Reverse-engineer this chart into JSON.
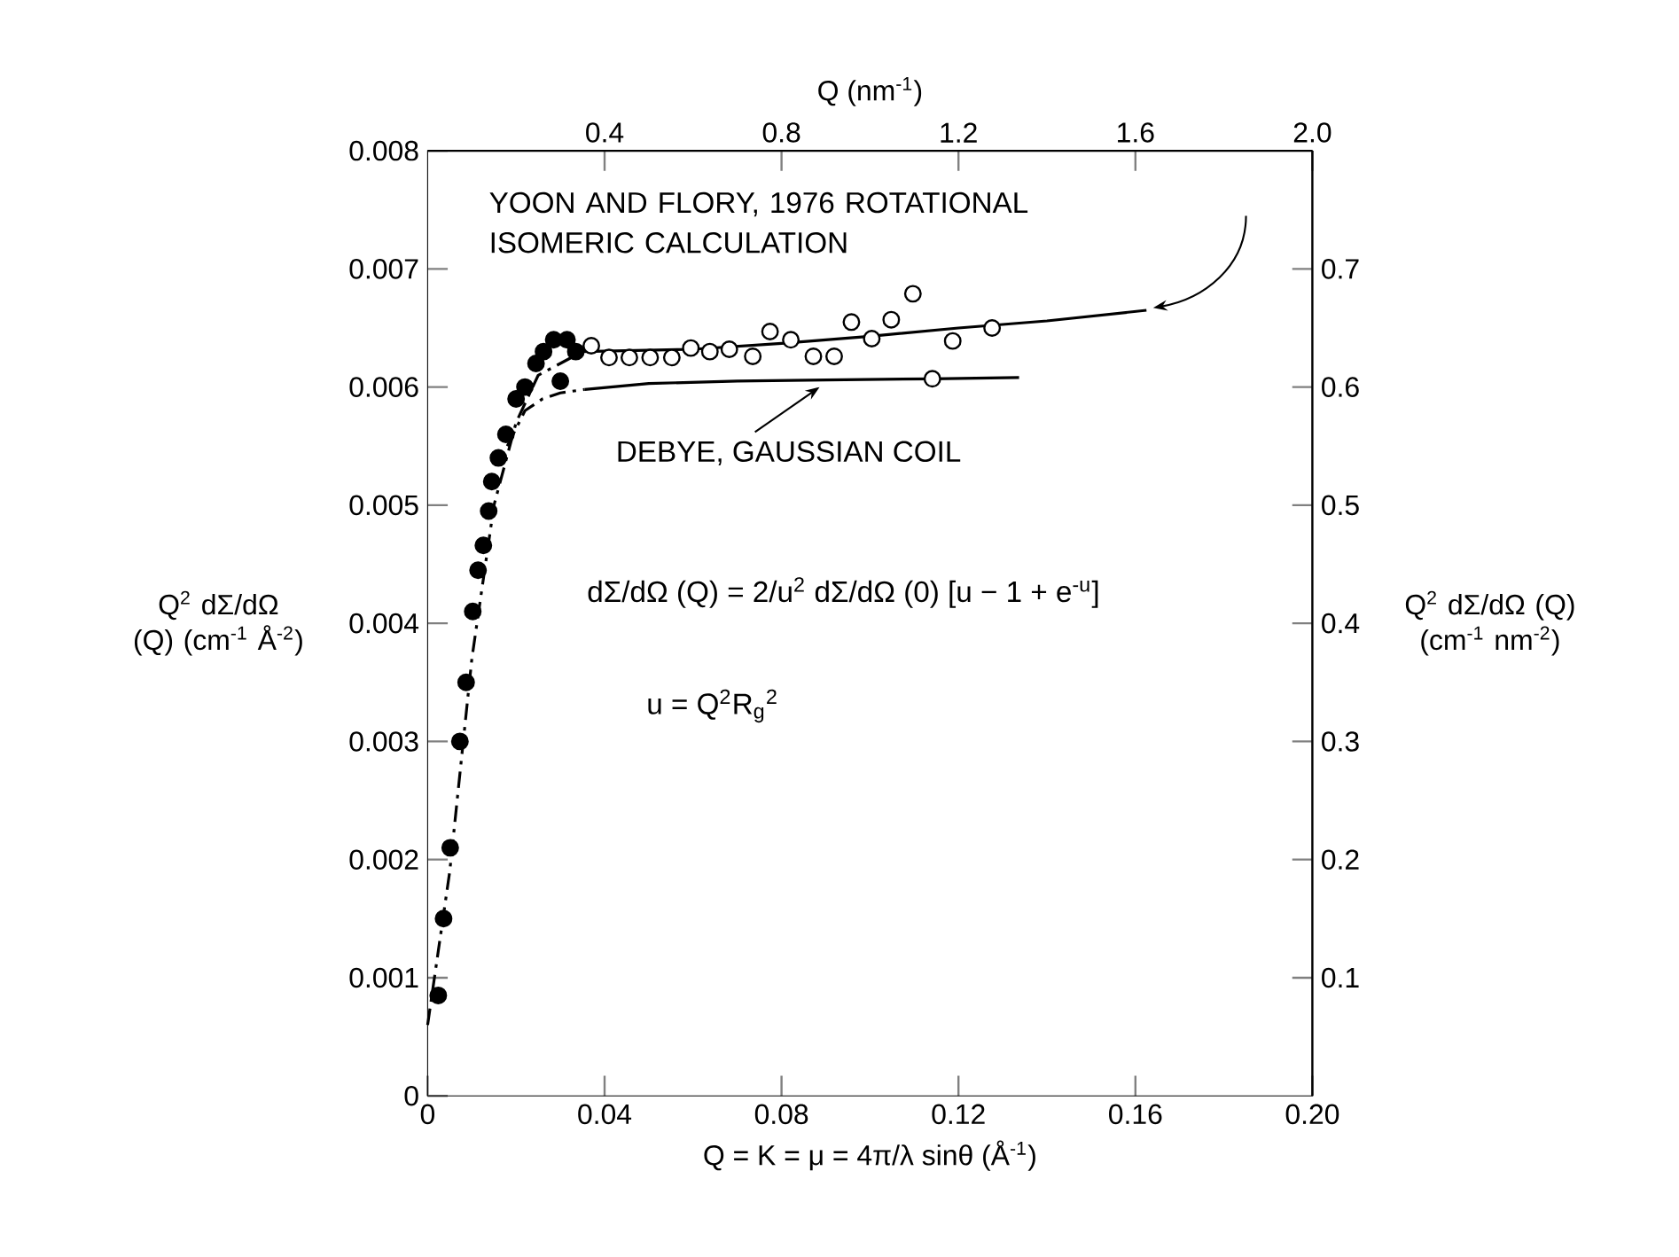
{
  "chart_data": {
    "type": "scatter",
    "xlabel": "Q = K = μ = 4π/λ sinθ (Å$^{-1}$)",
    "ylabel": "Q$^{2}$ dΣ/dΩ (Q) (cm$^{-1}$ Å$^{-2}$)",
    "x2label": "Q (nm$^{-1}$)",
    "y2label": "Q$^{2}$ dΣ/dΩ (Q) (cm$^{-1}$ nm$^{-2}$)",
    "xlim": [
      0,
      0.2
    ],
    "xticks": [
      0,
      0.04,
      0.08,
      0.12,
      0.16,
      {
        "value": 0.2,
        "label": "0.20"
      }
    ],
    "ylim": [
      0,
      0.008
    ],
    "yticks": [
      0,
      0.001,
      0.002,
      0.003,
      0.004,
      0.005,
      0.006,
      0.007,
      0.008
    ],
    "x2lim": [
      0,
      2
    ],
    "x2ticks": [
      0.4,
      0.8,
      1.2,
      1.6,
      {
        "value": 2,
        "label": "2.0"
      }
    ],
    "y2lim": [
      0,
      0.8
    ],
    "y2ticks": [
      0.1,
      0.2,
      0.3,
      0.4,
      0.5,
      0.6,
      0.7
    ],
    "series": [
      {
        "marker": "circle",
        "color": "#000000",
        "x": [
          0.0024,
          0.0036,
          0.0051,
          0.0073,
          0.0087,
          0.0102,
          0.0114,
          0.0126,
          0.0138,
          0.0145,
          0.016,
          0.0177,
          0.02,
          0.022,
          0.0245,
          0.0262,
          0.0285,
          0.03,
          0.0315,
          0.0335
        ],
        "values": [
          0.00085,
          0.0015,
          0.0021,
          0.003,
          0.0035,
          0.0041,
          0.00445,
          0.00466,
          0.00495,
          0.0052,
          0.0054,
          0.0056,
          0.0059,
          0.006,
          0.0062,
          0.0063,
          0.0064,
          0.00605,
          0.0064,
          0.0063
        ]
      },
      {
        "marker": "circle",
        "color": "#000000",
        "x": [
          0.037,
          0.041,
          0.0456,
          0.0503,
          0.0552,
          0.0595,
          0.0638,
          0.0682,
          0.0735,
          0.0774,
          0.0821,
          0.0872,
          0.0919,
          0.0958,
          0.1004,
          0.1048,
          0.1097,
          0.1141,
          0.1187,
          0.1276
        ],
        "values": [
          0.00635,
          0.00625,
          0.00625,
          0.00625,
          0.00625,
          0.00633,
          0.0063,
          0.00632,
          0.00626,
          0.00647,
          0.0064,
          0.00626,
          0.00626,
          0.00655,
          0.00641,
          0.00657,
          0.00679,
          0.00607,
          0.00639,
          0.0065
        ]
      },
      {
        "type": "line",
        "color": "#000000",
        "line_style": "dashed",
        "marker": "none",
        "x": [
          0,
          0.005,
          0.01,
          0.015,
          0.02,
          0.025,
          0.03,
          0.035
        ],
        "values": [
          0.0006,
          0.0019,
          0.0037,
          0.005,
          0.0057,
          0.0061,
          0.0062,
          0.0063
        ]
      },
      {
        "type": "line",
        "color": "#000000",
        "line_style": "solid",
        "marker": "none",
        "x": [
          0.035,
          0.06,
          0.08,
          0.1,
          0.12,
          0.14,
          0.1625
        ],
        "values": [
          0.0063,
          0.00632,
          0.00637,
          0.00643,
          0.0065,
          0.00656,
          0.00665
        ]
      },
      {
        "type": "line",
        "color": "#000000",
        "line_style": "dashed",
        "marker": "none",
        "x": [
          0.018,
          0.022,
          0.026,
          0.03,
          0.0355
        ],
        "values": [
          0.0055,
          0.0058,
          0.0059,
          0.00595,
          0.00598
        ]
      },
      {
        "type": "line",
        "color": "#000000",
        "line_style": "solid",
        "marker": "none",
        "x": [
          0.0355,
          0.05,
          0.07,
          0.09,
          0.1141,
          0.1337
        ],
        "values": [
          0.00598,
          0.00603,
          0.00605,
          0.00606,
          0.00607,
          0.00608
        ]
      }
    ],
    "annotations": [
      "YOON AND FLORY, 1976 ROTATIONAL ISOMERIC CALCULATION",
      {
        "text": "DEBYE, GAUSSIAN COIL",
        "x": 0.0886,
        "y": 0.006
      },
      "dΣ/dΩ (Q) = 2/u$^{2}$ dΣ/dΩ (0) [u − 1 + e$^{-u}$]",
      "u = Q$^{2}$R$_{g}$$^{2}$"
    ]
  }
}
